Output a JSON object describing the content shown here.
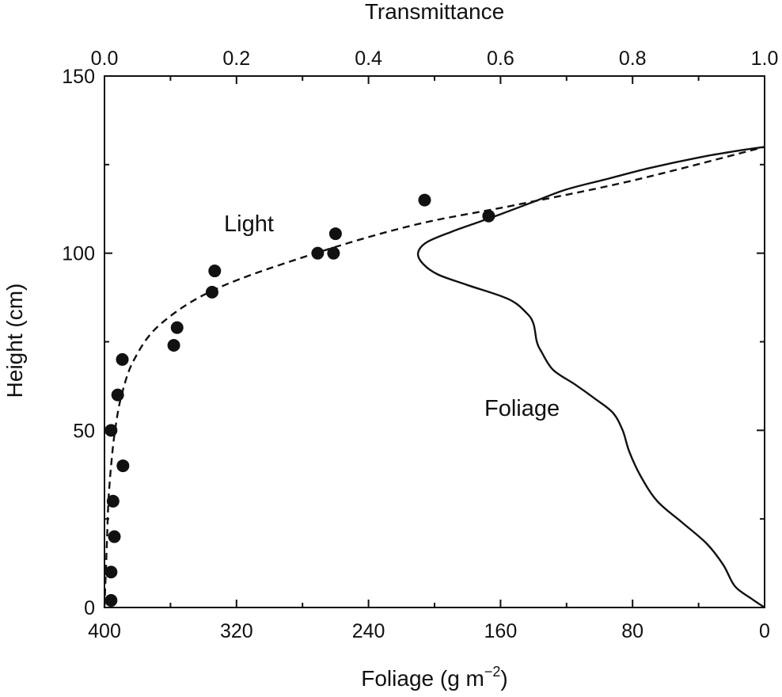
{
  "chart_data": {
    "type": "scatter",
    "title": "",
    "top_axis": {
      "label": "Transmittance",
      "range": [
        0.0,
        1.0
      ],
      "ticks": [
        "0.0",
        "0.2",
        "0.4",
        "0.6",
        "0.8",
        "1.0"
      ]
    },
    "bottom_axis": {
      "label": "Foliage (g m",
      "label_superscript": "−2",
      "label_suffix": ")",
      "range": [
        400,
        0
      ],
      "ticks": [
        "400",
        "320",
        "240",
        "160",
        "80",
        "0"
      ]
    },
    "left_axis": {
      "label": "Height (cm)",
      "range": [
        0,
        150
      ],
      "ticks": [
        "0",
        "50",
        "100",
        "150"
      ]
    },
    "annotations": {
      "light": "Light",
      "foliage": "Foliage"
    },
    "series": [
      {
        "style": "points",
        "axis": "transmittance",
        "points": [
          [
            0.01,
            2
          ],
          [
            0.01,
            10
          ],
          [
            0.015,
            20
          ],
          [
            0.013,
            30
          ],
          [
            0.028,
            40
          ],
          [
            0.01,
            50
          ],
          [
            0.02,
            60
          ],
          [
            0.027,
            70
          ],
          [
            0.105,
            74
          ],
          [
            0.11,
            79
          ],
          [
            0.163,
            89
          ],
          [
            0.167,
            95
          ],
          [
            0.323,
            100
          ],
          [
            0.347,
            100
          ],
          [
            0.35,
            105.5
          ],
          [
            0.485,
            115
          ],
          [
            0.582,
            110.5
          ]
        ]
      },
      {
        "style": "dashed",
        "axis": "transmittance",
        "points": [
          [
            0.0,
            0
          ],
          [
            0.002,
            10
          ],
          [
            0.004,
            20
          ],
          [
            0.006,
            30
          ],
          [
            0.01,
            40
          ],
          [
            0.016,
            50
          ],
          [
            0.026,
            60
          ],
          [
            0.045,
            70
          ],
          [
            0.085,
            80
          ],
          [
            0.17,
            90
          ],
          [
            0.32,
            100
          ],
          [
            0.47,
            108
          ],
          [
            0.62,
            113.5
          ],
          [
            0.8,
            120.5
          ],
          [
            1.0,
            130
          ]
        ]
      },
      {
        "style": "solid",
        "axis": "foliage",
        "points": [
          [
            0,
            0
          ],
          [
            8,
            2.5
          ],
          [
            18,
            6
          ],
          [
            25,
            12
          ],
          [
            35,
            18
          ],
          [
            50,
            24
          ],
          [
            65,
            30
          ],
          [
            75,
            37
          ],
          [
            82,
            44
          ],
          [
            86,
            50
          ],
          [
            92,
            55
          ],
          [
            103,
            59
          ],
          [
            115,
            63
          ],
          [
            128,
            67
          ],
          [
            135,
            72
          ],
          [
            138,
            75
          ],
          [
            140,
            80
          ],
          [
            144,
            83
          ],
          [
            155,
            87
          ],
          [
            180,
            91
          ],
          [
            198,
            94
          ],
          [
            207,
            97
          ],
          [
            210,
            100
          ],
          [
            205,
            103
          ],
          [
            190,
            106
          ],
          [
            175,
            108.5
          ],
          [
            160,
            111
          ],
          [
            140,
            114.5
          ],
          [
            120,
            118
          ],
          [
            95,
            121
          ],
          [
            70,
            124
          ],
          [
            40,
            127
          ],
          [
            15,
            129
          ],
          [
            0,
            130
          ]
        ]
      }
    ]
  }
}
